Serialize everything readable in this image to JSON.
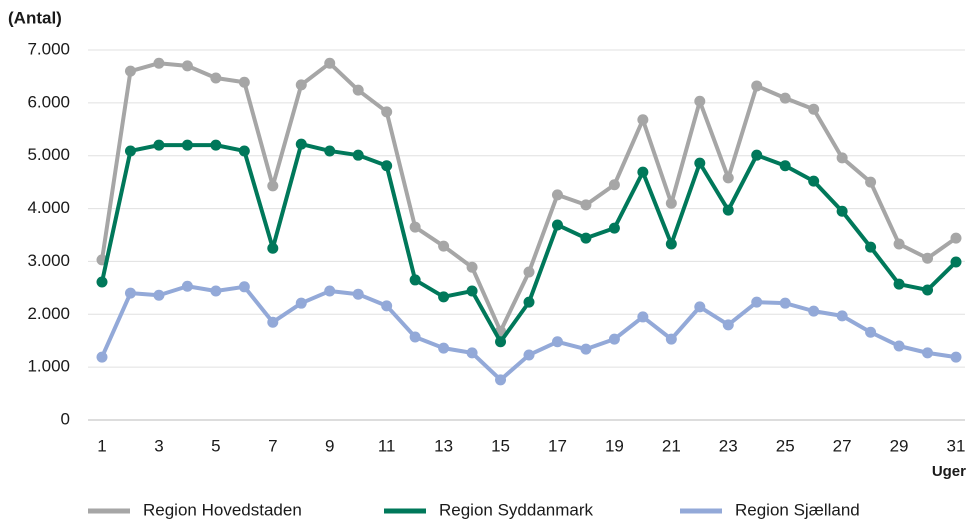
{
  "chart_data": {
    "type": "line",
    "y_label": "(Antal)",
    "x_label": "Uger",
    "categories": [
      1,
      null,
      3,
      null,
      5,
      null,
      7,
      null,
      9,
      null,
      11,
      null,
      13,
      null,
      15,
      null,
      17,
      null,
      19,
      null,
      21,
      null,
      23,
      null,
      25,
      null,
      27,
      null,
      29,
      null,
      31
    ],
    "series": [
      {
        "name": "Region Hovedstaden",
        "color": "#a6a6a6",
        "values": [
          3030,
          6600,
          6750,
          6700,
          6470,
          6390,
          4430,
          6340,
          6750,
          6240,
          5830,
          3650,
          3290,
          2890,
          1680,
          2800,
          4260,
          4070,
          4450,
          5680,
          4100,
          6030,
          4580,
          6320,
          6090,
          5880,
          4960,
          4500,
          3330,
          3060,
          3440
        ]
      },
      {
        "name": "Region Syddanmark",
        "color": "#00785a",
        "values": [
          2610,
          5090,
          5200,
          5200,
          5200,
          5090,
          3250,
          5220,
          5090,
          5010,
          4810,
          2650,
          2330,
          2440,
          1480,
          2230,
          3690,
          3440,
          3630,
          4690,
          3330,
          4860,
          3970,
          5010,
          4810,
          4520,
          3950,
          3270,
          2570,
          2460,
          2990
        ]
      },
      {
        "name": "Region Sjælland",
        "color": "#93a9d8",
        "values": [
          1190,
          2400,
          2360,
          2530,
          2440,
          2520,
          1850,
          2210,
          2440,
          2380,
          2160,
          1570,
          1360,
          1270,
          760,
          1230,
          1480,
          1340,
          1530,
          1950,
          1530,
          2140,
          1800,
          2230,
          2210,
          2060,
          1970,
          1660,
          1400,
          1270,
          1190
        ]
      }
    ],
    "ylim": [
      0,
      7000
    ],
    "yticks": [
      0,
      {
        "value": 1000,
        "label": "1.000"
      },
      {
        "value": 2000,
        "label": "2.000"
      },
      {
        "value": 3000,
        "label": "3.000"
      },
      {
        "value": 4000,
        "label": "4.000"
      },
      {
        "value": 5000,
        "label": "5.000"
      },
      {
        "value": 6000,
        "label": "6.000"
      },
      {
        "value": 7000,
        "label": "7.000"
      }
    ],
    "grid": true
  }
}
